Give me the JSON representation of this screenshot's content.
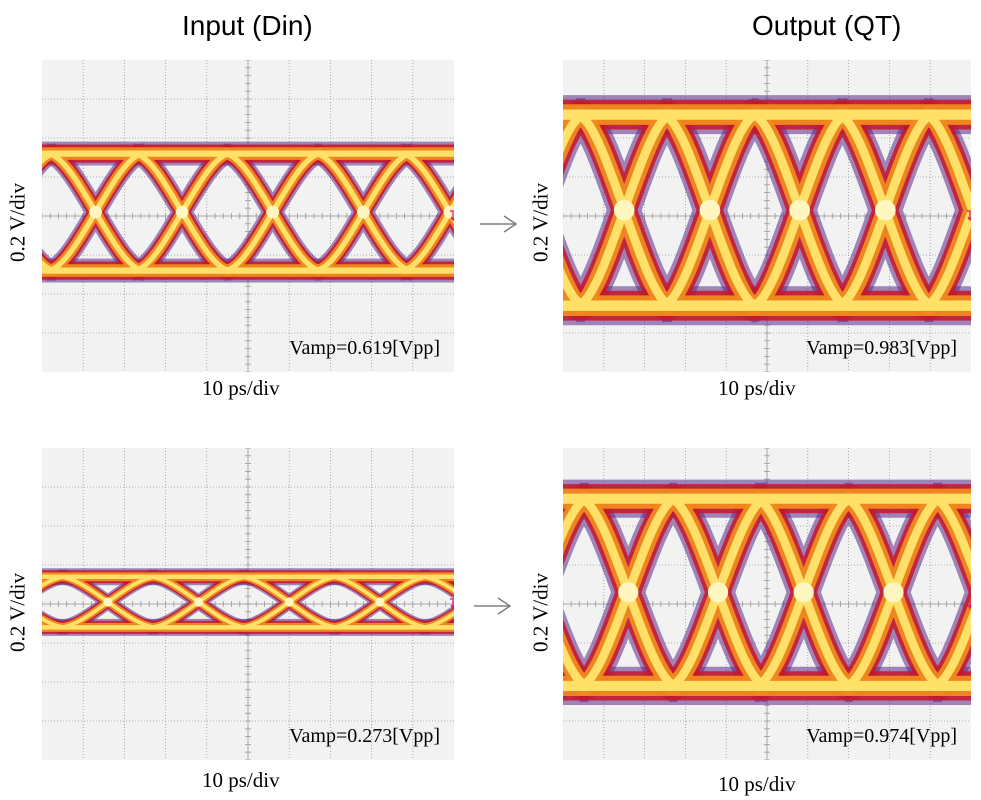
{
  "columns": {
    "input_title": "Input (Din)",
    "output_title": "Output (QT)"
  },
  "colors": {
    "background": "#f2f2f2",
    "grid": "#9a9a9a",
    "trace_core": "#ffe16a",
    "trace_mid": "#f08a1e",
    "trace_outer": "#c8142a",
    "trace_fringe": "#5a2a8a",
    "marker": "#e0106a",
    "arrow": "#808080"
  },
  "chart_data": [
    {
      "type": "eye-diagram",
      "panel": "input-top",
      "xlabel": "10 ps/div",
      "ylabel": "0.2 V/div",
      "annotation": "Vamp=0.619[Vpp]",
      "amplitude_vpp": 0.619,
      "x_divisions": 10,
      "y_divisions": 8,
      "crossings_div": [
        1.3,
        3.4,
        5.6,
        7.8,
        9.9
      ],
      "high_level_div": 1.6,
      "low_level_div": -1.4
    },
    {
      "type": "eye-diagram",
      "panel": "output-top",
      "xlabel": "10 ps/div",
      "ylabel": "0.2 V/div",
      "annotation": "Vamp=0.983[Vpp]",
      "amplitude_vpp": 0.983,
      "x_divisions": 10,
      "y_divisions": 8,
      "crossings_div": [
        1.5,
        3.6,
        5.8,
        7.9
      ],
      "high_level_div": 2.6,
      "low_level_div": -2.3
    },
    {
      "type": "eye-diagram",
      "panel": "input-bottom",
      "xlabel": "10 ps/div",
      "ylabel": "0.2 V/div",
      "annotation": "Vamp=0.273[Vpp]",
      "amplitude_vpp": 0.273,
      "x_divisions": 10,
      "y_divisions": 8,
      "crossings_div": [
        1.6,
        3.8,
        6.0,
        8.2
      ],
      "high_level_div": 0.7,
      "low_level_div": -0.6
    },
    {
      "type": "eye-diagram",
      "panel": "output-bottom",
      "xlabel": "10 ps/div",
      "ylabel": "0.2 V/div",
      "annotation": "Vamp=0.974[Vpp]",
      "amplitude_vpp": 0.974,
      "x_divisions": 10,
      "y_divisions": 8,
      "crossings_div": [
        1.6,
        3.8,
        5.9,
        8.1
      ],
      "high_level_div": 2.7,
      "low_level_div": -2.1
    }
  ]
}
